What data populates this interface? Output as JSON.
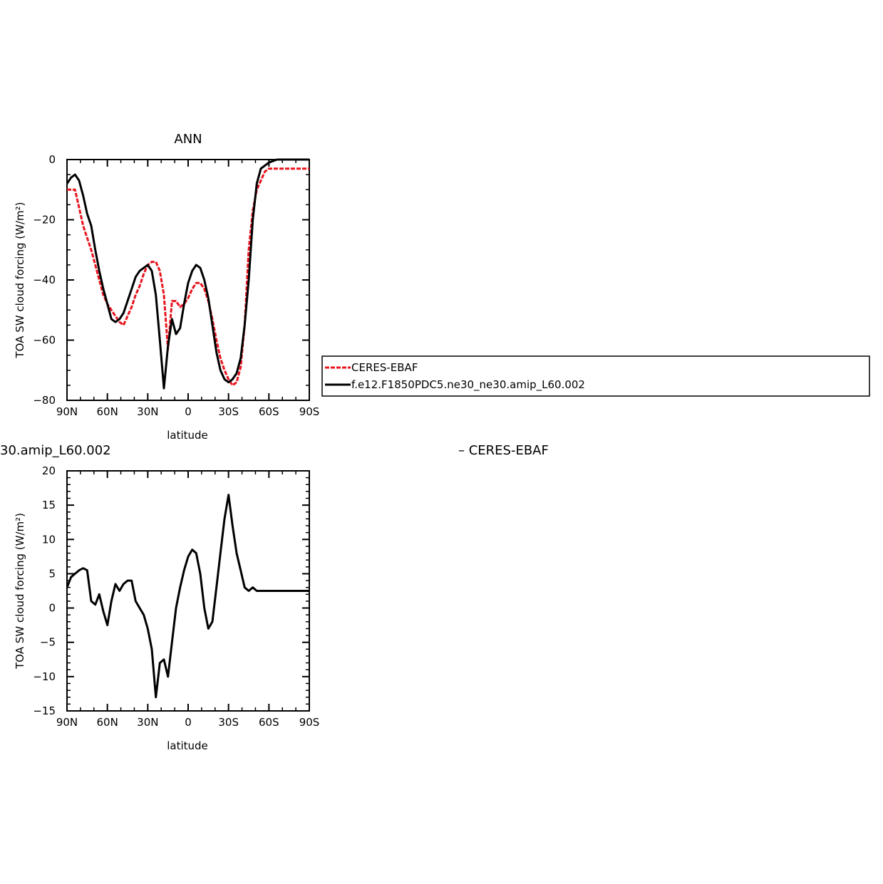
{
  "chart_data": [
    {
      "type": "line",
      "title": "ANN",
      "xlabel": "latitude",
      "ylabel": "TOA SW cloud forcing (W/m²)",
      "xlim": [
        90,
        -90
      ],
      "ylim": [
        -80,
        0
      ],
      "x_ticks": [
        {
          "value": 90,
          "label": "90N"
        },
        {
          "value": 60,
          "label": "60N"
        },
        {
          "value": 30,
          "label": "30N"
        },
        {
          "value": 0,
          "label": "0"
        },
        {
          "value": -30,
          "label": "30S"
        },
        {
          "value": -60,
          "label": "60S"
        },
        {
          "value": -90,
          "label": "90S"
        }
      ],
      "y_ticks": [
        0,
        -20,
        -40,
        -60,
        -80
      ],
      "legend": {
        "placement": "right",
        "entries": [
          "CERES-EBAF",
          "f.e12.F1850PDC5.ne30_ne30.amip_L60.002"
        ]
      },
      "series": [
        {
          "name": "CERES-EBAF",
          "color": "#e8141e",
          "dash": true,
          "x": [
            90,
            87,
            84,
            81,
            78,
            75,
            72,
            69,
            66,
            63,
            60,
            57,
            54,
            51,
            48,
            45,
            42,
            39,
            36,
            33,
            30,
            27,
            24,
            21,
            18,
            15,
            12,
            9,
            6,
            3,
            0,
            -3,
            -6,
            -9,
            -12,
            -15,
            -18,
            -21,
            -24,
            -27,
            -30,
            -33,
            -36,
            -39,
            -42,
            -45,
            -48,
            -51,
            -54,
            -57,
            -60,
            -63,
            -66,
            -69,
            -72,
            -75,
            -78,
            -81,
            -84,
            -87,
            -90
          ],
          "values": [
            -10,
            -10,
            -10,
            -16,
            -22,
            -26,
            -30,
            -35,
            -40,
            -45,
            -48,
            -50,
            -52,
            -54,
            -55,
            -52,
            -49,
            -45,
            -42,
            -38,
            -35,
            -34,
            -34,
            -37,
            -45,
            -63,
            -47,
            -47,
            -49,
            -48,
            -46,
            -43,
            -41,
            -41,
            -43,
            -47,
            -53,
            -60,
            -66,
            -70,
            -73,
            -75,
            -74,
            -69,
            -55,
            -30,
            -17,
            -10,
            -7,
            -4,
            -3,
            -3,
            -3,
            -3,
            -3,
            -3,
            -3,
            -3,
            -3,
            -3,
            -3
          ]
        },
        {
          "name": "f.e12.F1850PDC5.ne30_ne30.amip_L60.002",
          "color": "#000000",
          "dash": false,
          "x": [
            90,
            87,
            84,
            81,
            78,
            75,
            72,
            69,
            66,
            63,
            60,
            57,
            54,
            51,
            48,
            45,
            42,
            39,
            36,
            33,
            30,
            27,
            24,
            21,
            18,
            15,
            12,
            9,
            6,
            3,
            0,
            -3,
            -6,
            -9,
            -12,
            -15,
            -18,
            -21,
            -24,
            -27,
            -30,
            -33,
            -36,
            -39,
            -42,
            -45,
            -48,
            -51,
            -54,
            -57,
            -60,
            -63,
            -66,
            -69,
            -72,
            -75,
            -78,
            -81,
            -84,
            -87,
            -90
          ],
          "values": [
            -8,
            -6,
            -5,
            -7,
            -12,
            -18,
            -22,
            -30,
            -37,
            -43,
            -48,
            -53,
            -54,
            -53,
            -51,
            -47,
            -43,
            -39,
            -37,
            -36,
            -35,
            -37,
            -45,
            -60,
            -76,
            -62,
            -53,
            -58,
            -56,
            -48,
            -41,
            -37,
            -35,
            -36,
            -40,
            -46,
            -55,
            -64,
            -70,
            -73,
            -74,
            -73,
            -71,
            -66,
            -55,
            -40,
            -20,
            -8,
            -3,
            -2,
            -1,
            -0.5,
            0,
            0,
            0,
            0,
            0,
            0,
            0,
            0,
            0
          ]
        }
      ]
    },
    {
      "type": "line",
      "title_left": "30.amip_L60.002",
      "title_right": "– CERES-EBAF",
      "xlabel": "latitude",
      "ylabel": "TOA SW cloud forcing (W/m²)",
      "xlim": [
        90,
        -90
      ],
      "ylim": [
        -15,
        20
      ],
      "x_ticks": [
        {
          "value": 90,
          "label": "90N"
        },
        {
          "value": 60,
          "label": "60N"
        },
        {
          "value": 30,
          "label": "30N"
        },
        {
          "value": 0,
          "label": "0"
        },
        {
          "value": -30,
          "label": "30S"
        },
        {
          "value": -60,
          "label": "60S"
        },
        {
          "value": -90,
          "label": "90S"
        }
      ],
      "y_ticks": [
        20,
        15,
        10,
        5,
        0,
        -5,
        -10,
        -15
      ],
      "series": [
        {
          "color": "#000000",
          "dash": false,
          "x": [
            90,
            87,
            84,
            81,
            78,
            75,
            72,
            69,
            66,
            63,
            60,
            57,
            54,
            51,
            48,
            45,
            42,
            39,
            36,
            33,
            30,
            27,
            24,
            21,
            18,
            15,
            12,
            9,
            6,
            3,
            0,
            -3,
            -6,
            -9,
            -12,
            -15,
            -18,
            -21,
            -24,
            -27,
            -30,
            -33,
            -36,
            -39,
            -42,
            -45,
            -48,
            -51,
            -54,
            -57,
            -60,
            -63,
            -66,
            -69,
            -72,
            -75,
            -78,
            -81,
            -84,
            -87,
            -90
          ],
          "values": [
            3,
            4.5,
            5,
            5.5,
            5.8,
            5.5,
            1,
            0.5,
            2,
            -0.5,
            -2.5,
            1,
            3.5,
            2.5,
            3.5,
            4,
            4,
            1,
            0,
            -1,
            -3,
            -6,
            -13,
            -8,
            -7.5,
            -10,
            -5,
            0,
            3,
            5.5,
            7.5,
            8.5,
            8,
            5,
            0,
            -3,
            -2,
            3,
            8,
            13,
            16.5,
            12,
            8,
            5.5,
            3,
            2.5,
            3,
            2.5,
            2.5,
            2.5,
            2.5,
            2.5,
            2.5,
            2.5,
            2.5,
            2.5,
            2.5,
            2.5,
            2.5,
            2.5,
            2.5
          ]
        }
      ]
    }
  ]
}
